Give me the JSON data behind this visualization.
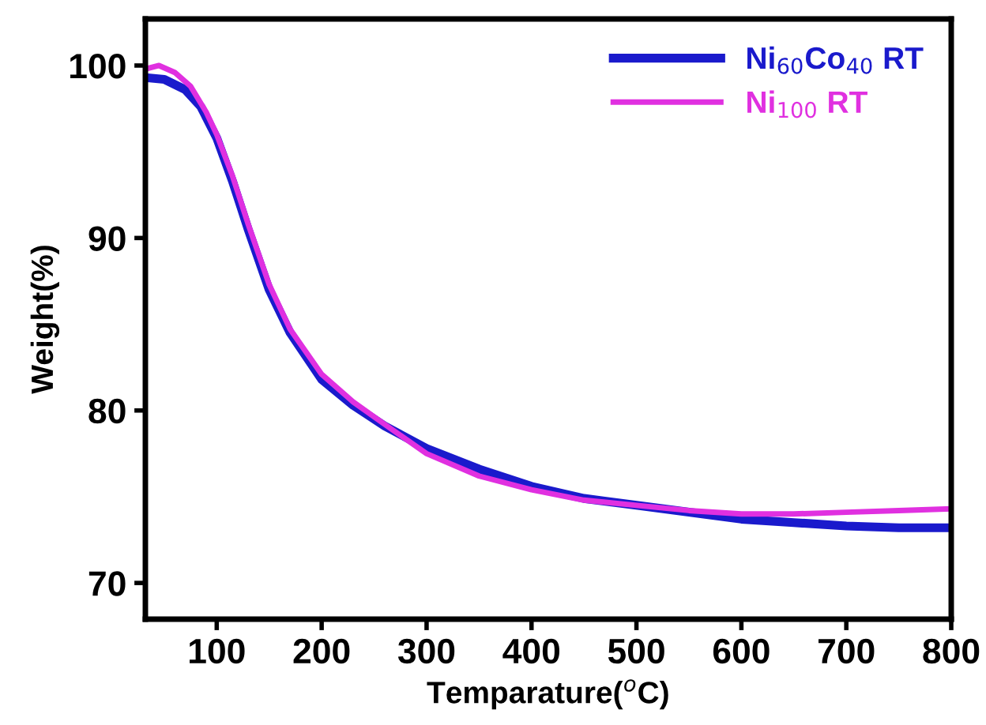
{
  "chart_data": {
    "type": "line",
    "xlabel": "Temparature($^{o}$C)",
    "ylabel": "Weight(%)",
    "xlim": [
      32,
      800
    ],
    "ylim": [
      67.9,
      102.7
    ],
    "xticks": [
      100,
      200,
      300,
      400,
      500,
      600,
      700,
      800
    ],
    "yticks": [
      70,
      80,
      90,
      100
    ],
    "legend": "top right",
    "grid": false,
    "marker": "none",
    "line_style": "solid",
    "series": [
      {
        "name": "Ni$_{60}$Co$_{40}$ RT",
        "color": "#1a1acc",
        "x": [
          32,
          50,
          70,
          85,
          100,
          115,
          130,
          150,
          170,
          200,
          230,
          260,
          300,
          350,
          400,
          450,
          500,
          550,
          600,
          650,
          700,
          750,
          800
        ],
        "values": [
          99.3,
          99.2,
          98.6,
          97.6,
          95.8,
          93.3,
          90.5,
          87.0,
          84.5,
          81.8,
          80.3,
          79.1,
          77.8,
          76.6,
          75.6,
          74.9,
          74.5,
          74.1,
          73.7,
          73.5,
          73.3,
          73.2,
          73.2
        ]
      },
      {
        "name": "Ni$_{100}$ RT",
        "color": "#e030e0",
        "x": [
          32,
          45,
          60,
          75,
          90,
          100,
          115,
          130,
          150,
          170,
          200,
          230,
          260,
          300,
          350,
          400,
          450,
          500,
          550,
          600,
          650,
          700,
          750,
          800
        ],
        "values": [
          99.8,
          100.0,
          99.6,
          98.8,
          97.3,
          96.0,
          93.6,
          90.8,
          87.3,
          84.7,
          82.1,
          80.5,
          79.2,
          77.5,
          76.2,
          75.4,
          74.8,
          74.5,
          74.2,
          74.0,
          74.0,
          74.1,
          74.2,
          74.3
        ]
      }
    ]
  }
}
